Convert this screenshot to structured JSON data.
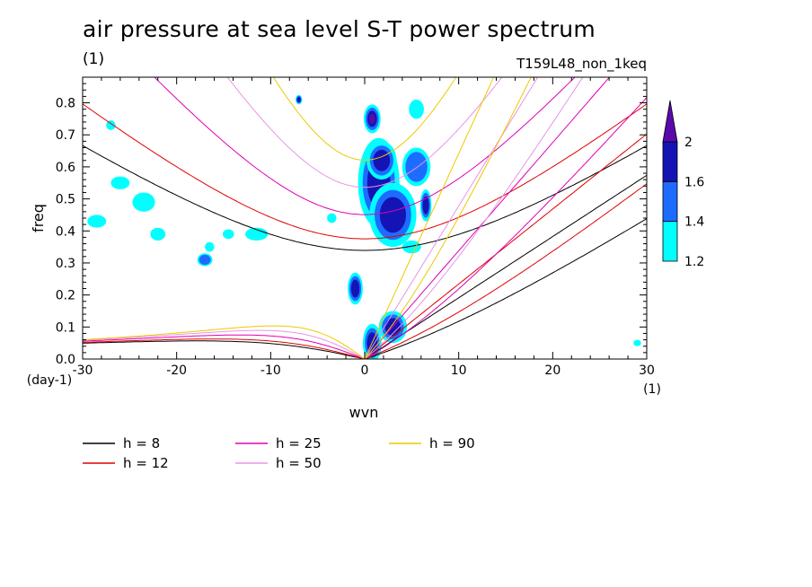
{
  "title": "air pressure at sea level S-T power spectrum",
  "title_unit": "(1)",
  "run_label": "T159L48_non_1keq",
  "chart_data": {
    "type": "heatmap",
    "xlabel": "wvn",
    "ylabel": "freq",
    "x_unit": "(1)",
    "y_unit": "(day-1)",
    "xlim": [
      -30,
      30
    ],
    "ylim": [
      0,
      0.88
    ],
    "xticks": [
      "-30",
      "-20",
      "-10",
      "0",
      "10",
      "20",
      "30"
    ],
    "yticks": [
      "0.0",
      "0.1",
      "0.2",
      "0.3",
      "0.4",
      "0.5",
      "0.6",
      "0.7",
      "0.8"
    ],
    "colorbar": {
      "ticks": [
        "1.2",
        "1.4",
        "1.6",
        "2"
      ],
      "levels": [
        1.2,
        1.4,
        1.6,
        2.0
      ],
      "colors": [
        "#00ffff",
        "#1e6cff",
        "#1414b4",
        "#5a0aaa"
      ]
    },
    "blobs": [
      {
        "x": 0.8,
        "y": 0.75,
        "rx": 0.9,
        "ry": 0.045,
        "level": 2.0
      },
      {
        "x": 1.5,
        "y": 0.55,
        "rx": 2.2,
        "ry": 0.14,
        "level": 1.8
      },
      {
        "x": 3.0,
        "y": 0.45,
        "rx": 2.5,
        "ry": 0.1,
        "level": 1.8
      },
      {
        "x": 1.8,
        "y": 0.62,
        "rx": 1.6,
        "ry": 0.06,
        "level": 1.6
      },
      {
        "x": 5.5,
        "y": 0.6,
        "rx": 1.5,
        "ry": 0.06,
        "level": 1.5
      },
      {
        "x": 6.5,
        "y": 0.48,
        "rx": 0.6,
        "ry": 0.05,
        "level": 1.7
      },
      {
        "x": -1.0,
        "y": 0.22,
        "rx": 0.8,
        "ry": 0.05,
        "level": 1.9
      },
      {
        "x": 0.8,
        "y": 0.05,
        "rx": 1.0,
        "ry": 0.06,
        "level": 1.9
      },
      {
        "x": 3.0,
        "y": 0.1,
        "rx": 1.5,
        "ry": 0.05,
        "level": 1.7
      },
      {
        "x": -7.0,
        "y": 0.81,
        "rx": 0.35,
        "ry": 0.015,
        "level": 1.8
      },
      {
        "x": 5.5,
        "y": 0.78,
        "rx": 0.8,
        "ry": 0.03,
        "level": 1.3
      },
      {
        "x": -26.0,
        "y": 0.55,
        "rx": 1.0,
        "ry": 0.02,
        "level": 1.3
      },
      {
        "x": -23.5,
        "y": 0.49,
        "rx": 1.2,
        "ry": 0.03,
        "level": 1.3
      },
      {
        "x": -28.5,
        "y": 0.43,
        "rx": 1.0,
        "ry": 0.02,
        "level": 1.3
      },
      {
        "x": -22.0,
        "y": 0.39,
        "rx": 0.8,
        "ry": 0.02,
        "level": 1.3
      },
      {
        "x": -11.5,
        "y": 0.39,
        "rx": 1.2,
        "ry": 0.02,
        "level": 1.3
      },
      {
        "x": -17.0,
        "y": 0.31,
        "rx": 0.8,
        "ry": 0.02,
        "level": 1.4
      },
      {
        "x": -16.5,
        "y": 0.35,
        "rx": 0.5,
        "ry": 0.015,
        "level": 1.3
      },
      {
        "x": -27.0,
        "y": 0.73,
        "rx": 0.5,
        "ry": 0.015,
        "level": 1.3
      },
      {
        "x": -14.5,
        "y": 0.39,
        "rx": 0.6,
        "ry": 0.015,
        "level": 1.3
      },
      {
        "x": -3.5,
        "y": 0.44,
        "rx": 0.5,
        "ry": 0.015,
        "level": 1.3
      },
      {
        "x": 29.0,
        "y": 0.05,
        "rx": 0.4,
        "ry": 0.01,
        "level": 1.3
      },
      {
        "x": 5.0,
        "y": 0.35,
        "rx": 1.0,
        "ry": 0.02,
        "level": 1.3
      }
    ],
    "series": [
      {
        "name": "h =  8",
        "h": 8,
        "color": "#000000"
      },
      {
        "name": "h = 12",
        "h": 12,
        "color": "#e00000"
      },
      {
        "name": "h = 25",
        "h": 25,
        "color": "#e000b4"
      },
      {
        "name": "h = 50",
        "h": 50,
        "color": "#e696e6"
      },
      {
        "name": "h = 90",
        "h": 90,
        "color": "#f0c800"
      }
    ]
  }
}
